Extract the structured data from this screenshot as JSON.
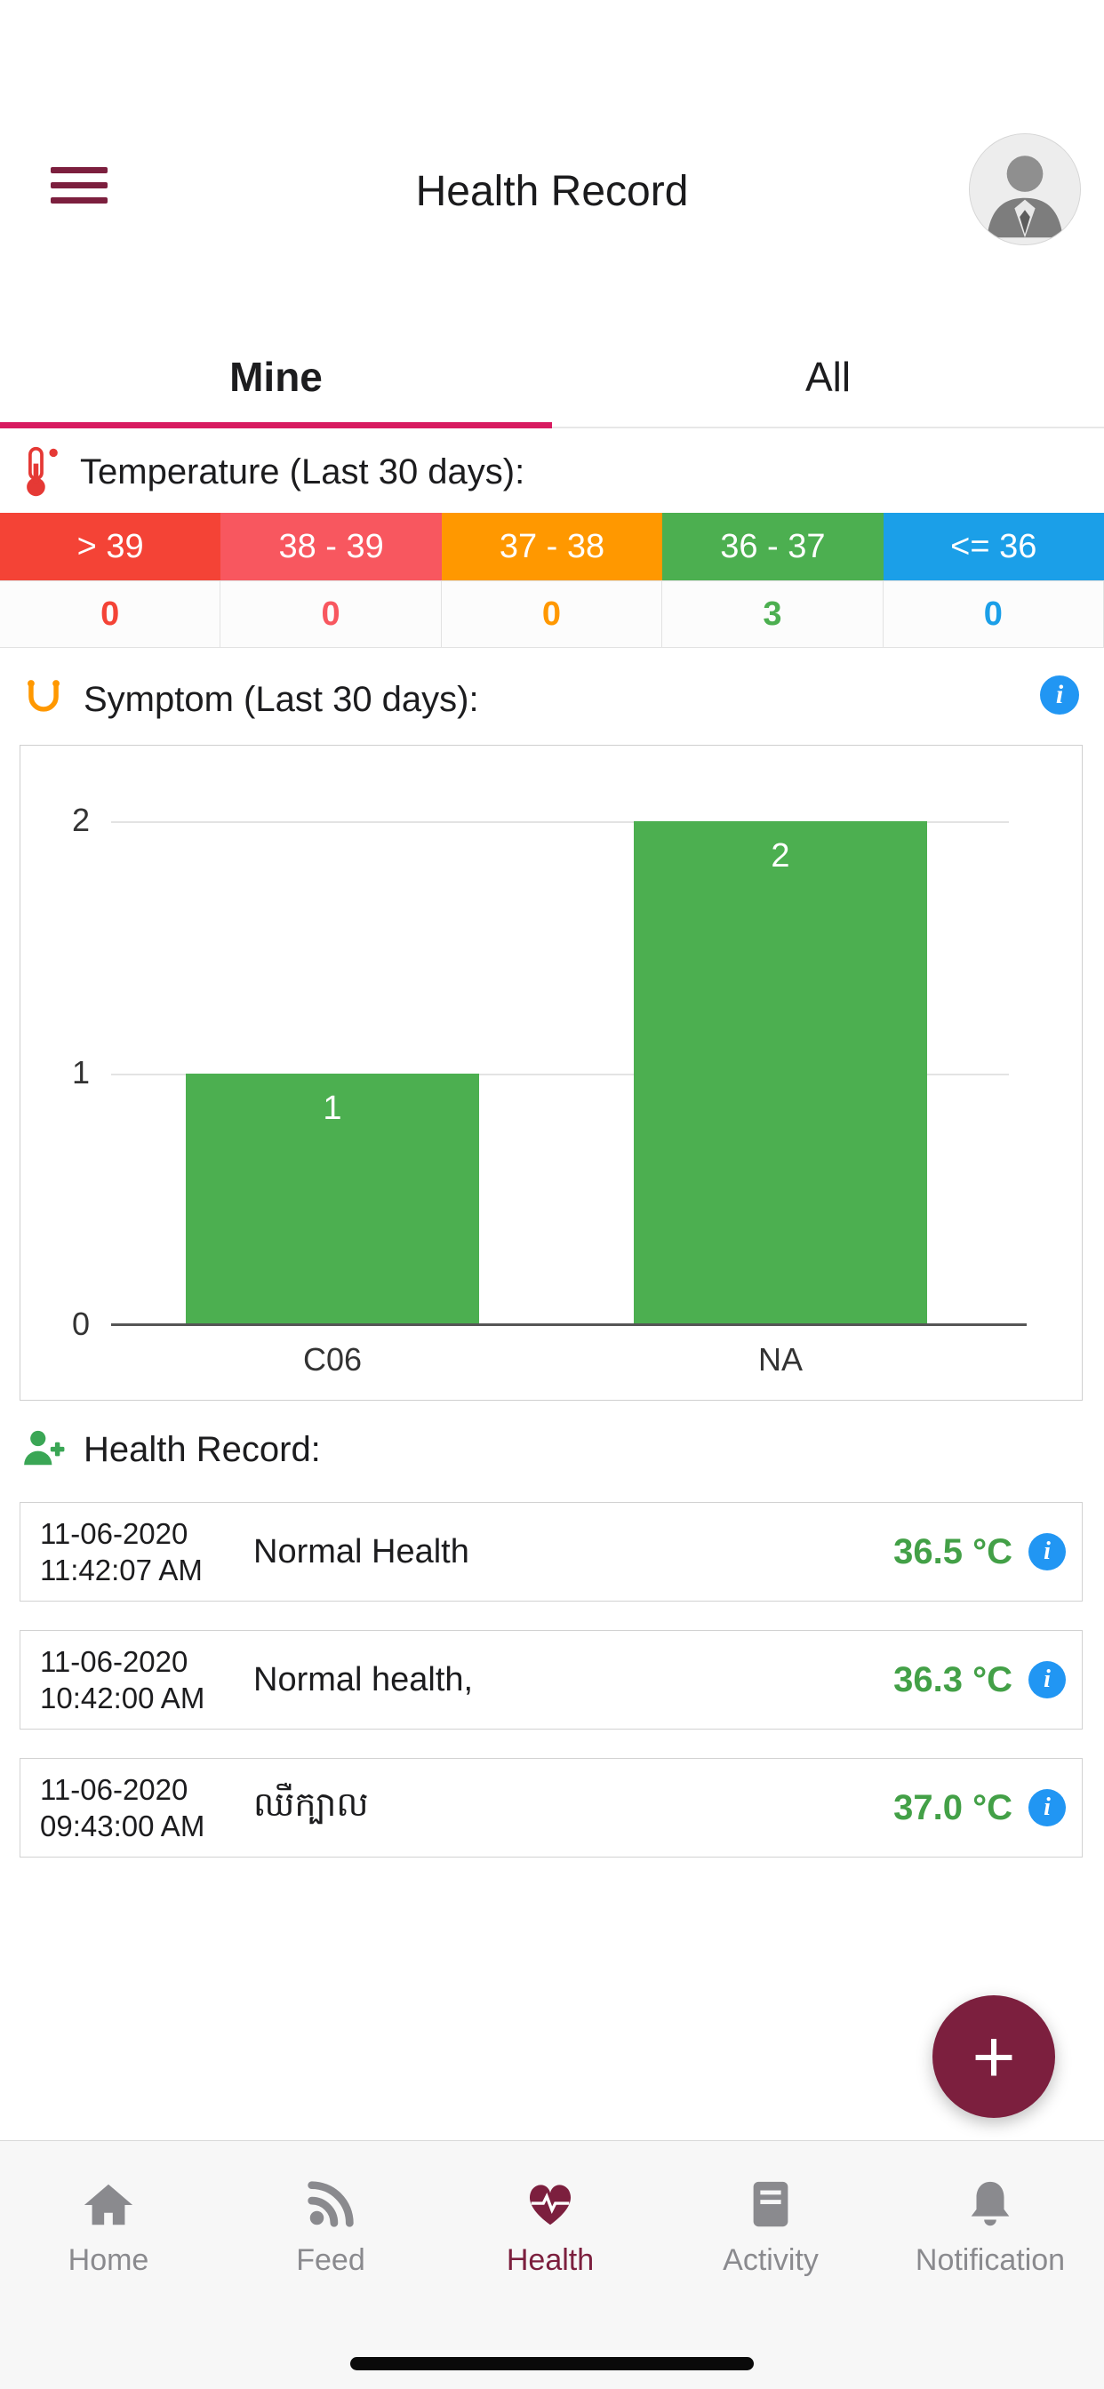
{
  "header": {
    "title": "Health Record"
  },
  "tabs": {
    "mine": "Mine",
    "all": "All"
  },
  "temperature": {
    "title": "Temperature (Last 30 days):",
    "ranges": [
      {
        "label": "> 39",
        "count": "0",
        "color": "#f44336"
      },
      {
        "label": "38 - 39",
        "count": "0",
        "color": "#f8575f"
      },
      {
        "label": "37 - 38",
        "count": "0",
        "color": "#ff9800"
      },
      {
        "label": "36 - 37",
        "count": "3",
        "color": "#4caf50"
      },
      {
        "label": "<= 36",
        "count": "0",
        "color": "#1b9fe8"
      }
    ]
  },
  "symptom": {
    "title": "Symptom (Last 30 days):"
  },
  "chart_data": {
    "type": "bar",
    "categories": [
      "C06",
      "NA"
    ],
    "values": [
      1,
      2
    ],
    "yticks": [
      "0",
      "1",
      "2"
    ],
    "ylim": [
      0,
      2
    ],
    "bar_color": "#4caf50",
    "grid": true,
    "title": "",
    "xlabel": "",
    "ylabel": "",
    "legend": "none"
  },
  "health_record": {
    "title": "Health Record:",
    "rows": [
      {
        "date": "11-06-2020",
        "time": "11:42:07 AM",
        "label": "Normal Health",
        "temp": "36.5 °C"
      },
      {
        "date": "11-06-2020",
        "time": "10:42:00 AM",
        "label": "Normal health,",
        "temp": "36.3 °C"
      },
      {
        "date": "11-06-2020",
        "time": "09:43:00 AM",
        "label": "ឈឺក្បាល",
        "temp": "37.0 °C"
      }
    ]
  },
  "fab": {
    "label": "+"
  },
  "nav": {
    "items": [
      {
        "label": "Home",
        "icon": "home-icon",
        "active": false
      },
      {
        "label": "Feed",
        "icon": "rss-icon",
        "active": false
      },
      {
        "label": "Health",
        "icon": "heart-pulse-icon",
        "active": true
      },
      {
        "label": "Activity",
        "icon": "journal-icon",
        "active": false
      },
      {
        "label": "Notification",
        "icon": "bell-icon",
        "active": false
      }
    ]
  },
  "icons": {
    "info": "i"
  },
  "colors": {
    "accent_maroon": "#7c1f3e",
    "tab_underline": "#d81b60",
    "chart_green": "#4caf50",
    "info_blue": "#2196f3"
  }
}
